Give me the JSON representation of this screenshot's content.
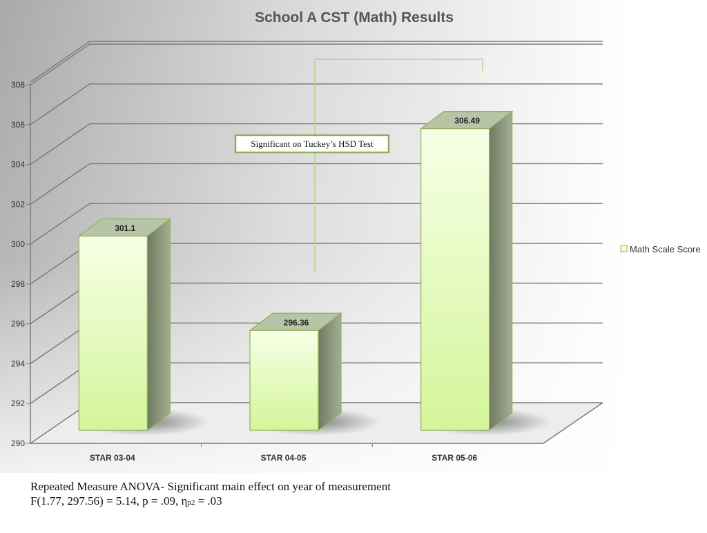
{
  "chart_data": {
    "type": "bar",
    "title": "School A CST (Math) Results",
    "categories": [
      "STAR 03-04",
      "STAR 04-05",
      "STAR 05-06"
    ],
    "series": [
      {
        "name": "Math Scale Score",
        "values": [
          301.1,
          296.36,
          306.49
        ]
      }
    ],
    "data_labels": [
      "301.1",
      "296.36",
      "306.49"
    ],
    "ylim": [
      290,
      308
    ],
    "yticks": [
      290,
      292,
      294,
      296,
      298,
      300,
      302,
      304,
      306,
      308
    ],
    "grid": true,
    "legend": "right",
    "three_d": true,
    "colors": {
      "bar_front": "#f0ffd6",
      "bar_bottom": "#d4f59a",
      "bar_edge": "#8fb05a",
      "bar_top": "#b8c4a6",
      "bar_side": "#8e9a7e"
    },
    "annotation": {
      "text": "Significant on Tuckey’s HSD Test",
      "connects": [
        "STAR 04-05",
        "STAR 05-06"
      ]
    }
  },
  "caption": {
    "line1": "Repeated Measure ANOVA- Significant main effect on year of measurement",
    "line2_main": "F(1.77, 297.56) = 5.14, p = .09, η",
    "line2_sub": "p2",
    "line2_end": " = .03"
  }
}
